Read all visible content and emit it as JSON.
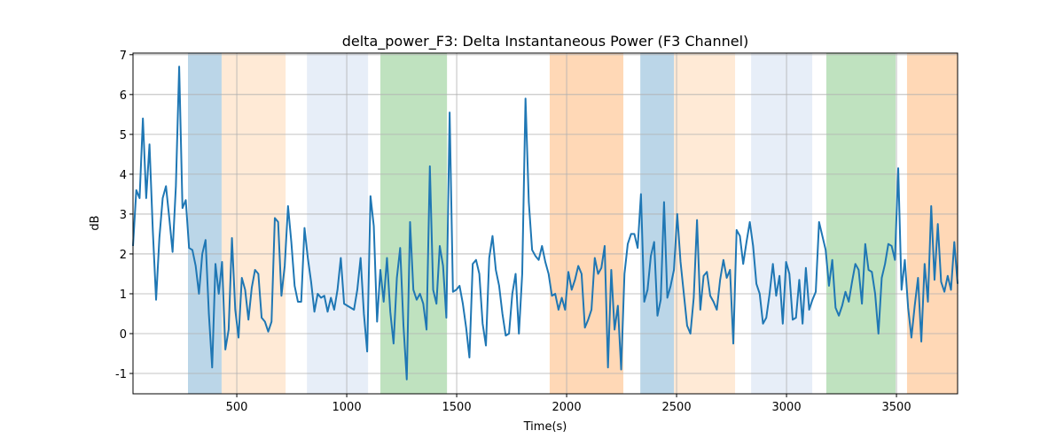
{
  "chart_data": {
    "type": "line",
    "title": "delta_power_F3: Delta Instantaneous Power (F3 Channel)",
    "xlabel": "Time(s)",
    "ylabel": "dB",
    "x": [
      28,
      43,
      58,
      73,
      88,
      103,
      118,
      133,
      148,
      163,
      178,
      193,
      208,
      223,
      238,
      253,
      268,
      283,
      298,
      313,
      328,
      343,
      358,
      373,
      388,
      403,
      418,
      433,
      448,
      463,
      478,
      493,
      508,
      523,
      538,
      553,
      568,
      583,
      598,
      613,
      628,
      643,
      658,
      673,
      688,
      703,
      718,
      733,
      748,
      763,
      778,
      793,
      808,
      823,
      838,
      853,
      868,
      883,
      898,
      913,
      928,
      943,
      958,
      973,
      988,
      1003,
      1018,
      1033,
      1048,
      1063,
      1078,
      1093,
      1108,
      1123,
      1138,
      1153,
      1168,
      1183,
      1198,
      1213,
      1228,
      1243,
      1258,
      1273,
      1288,
      1303,
      1318,
      1333,
      1348,
      1363,
      1378,
      1393,
      1408,
      1423,
      1438,
      1453,
      1468,
      1483,
      1498,
      1513,
      1528,
      1543,
      1558,
      1573,
      1588,
      1603,
      1618,
      1633,
      1648,
      1663,
      1678,
      1693,
      1708,
      1723,
      1738,
      1753,
      1768,
      1783,
      1798,
      1813,
      1828,
      1843,
      1858,
      1873,
      1888,
      1903,
      1918,
      1933,
      1948,
      1963,
      1978,
      1993,
      2008,
      2023,
      2038,
      2053,
      2068,
      2083,
      2098,
      2113,
      2128,
      2143,
      2158,
      2173,
      2188,
      2203,
      2218,
      2233,
      2248,
      2263,
      2278,
      2293,
      2308,
      2323,
      2338,
      2353,
      2368,
      2383,
      2398,
      2413,
      2428,
      2443,
      2458,
      2473,
      2488,
      2503,
      2518,
      2533,
      2548,
      2563,
      2578,
      2593,
      2608,
      2623,
      2638,
      2653,
      2668,
      2683,
      2698,
      2713,
      2728,
      2743,
      2758,
      2773,
      2788,
      2803,
      2818,
      2833,
      2848,
      2863,
      2878,
      2893,
      2908,
      2923,
      2938,
      2953,
      2968,
      2983,
      2998,
      3013,
      3028,
      3043,
      3058,
      3073,
      3088,
      3103,
      3118,
      3133,
      3148,
      3163,
      3178,
      3193,
      3208,
      3223,
      3238,
      3253,
      3268,
      3283,
      3298,
      3313,
      3328,
      3343,
      3358,
      3373,
      3388,
      3403,
      3418,
      3433,
      3448,
      3463,
      3478,
      3493,
      3508,
      3523,
      3538,
      3553,
      3568,
      3583,
      3598,
      3613,
      3628,
      3643,
      3658,
      3673,
      3688,
      3703,
      3718,
      3733,
      3748,
      3763,
      3778
    ],
    "values": [
      2.2,
      3.6,
      3.4,
      5.4,
      3.4,
      4.75,
      2.6,
      0.85,
      2.4,
      3.4,
      3.7,
      2.9,
      2.05,
      3.7,
      6.7,
      3.15,
      3.35,
      2.15,
      2.1,
      1.7,
      1.0,
      2.0,
      2.35,
      0.5,
      -0.85,
      1.75,
      1.0,
      1.8,
      -0.4,
      0.1,
      2.4,
      0.6,
      -0.1,
      1.4,
      1.1,
      0.35,
      1.15,
      1.6,
      1.5,
      0.4,
      0.3,
      0.05,
      0.3,
      2.9,
      2.8,
      0.95,
      1.7,
      3.2,
      2.3,
      1.2,
      0.8,
      0.8,
      2.65,
      1.9,
      1.3,
      0.55,
      1.0,
      0.9,
      0.95,
      0.55,
      0.9,
      0.6,
      1.1,
      1.9,
      0.75,
      0.7,
      0.65,
      0.6,
      1.1,
      1.9,
      0.5,
      -0.45,
      3.45,
      2.7,
      0.3,
      1.6,
      0.8,
      1.9,
      0.55,
      -0.25,
      1.4,
      2.15,
      0.2,
      -1.15,
      2.8,
      1.1,
      0.85,
      1.0,
      0.75,
      0.1,
      4.2,
      1.1,
      0.75,
      2.2,
      1.7,
      0.4,
      5.55,
      1.05,
      1.1,
      1.2,
      0.75,
      0.15,
      -0.6,
      1.75,
      1.85,
      1.5,
      0.25,
      -0.3,
      1.9,
      2.45,
      1.6,
      1.2,
      0.5,
      -0.05,
      0.0,
      1.0,
      1.5,
      0.0,
      1.5,
      5.9,
      3.3,
      2.1,
      1.95,
      1.85,
      2.2,
      1.8,
      1.5,
      0.95,
      1.0,
      0.6,
      0.9,
      0.6,
      1.55,
      1.1,
      1.35,
      1.7,
      1.5,
      0.15,
      0.35,
      0.6,
      1.9,
      1.5,
      1.65,
      2.2,
      -0.85,
      1.6,
      0.1,
      0.7,
      -0.9,
      1.5,
      2.25,
      2.5,
      2.5,
      2.15,
      3.5,
      0.8,
      1.1,
      1.95,
      2.3,
      0.45,
      0.85,
      3.3,
      0.9,
      1.2,
      1.6,
      3.0,
      1.8,
      1.0,
      0.2,
      0.0,
      0.9,
      2.85,
      0.6,
      1.45,
      1.55,
      0.95,
      0.8,
      0.6,
      1.35,
      1.85,
      1.4,
      1.6,
      -0.25,
      2.6,
      2.45,
      1.75,
      2.3,
      2.8,
      2.2,
      1.25,
      1.0,
      0.25,
      0.4,
      1.0,
      1.75,
      0.95,
      1.45,
      0.25,
      1.8,
      1.5,
      0.35,
      0.4,
      1.35,
      0.25,
      1.65,
      0.6,
      0.85,
      1.05,
      2.8,
      2.45,
      2.1,
      1.2,
      1.85,
      0.65,
      0.45,
      0.7,
      1.05,
      0.8,
      1.3,
      1.75,
      1.6,
      0.75,
      2.25,
      1.6,
      1.55,
      1.0,
      0.0,
      1.4,
      1.75,
      2.25,
      2.2,
      1.85,
      4.15,
      1.1,
      1.85,
      0.65,
      -0.1,
      0.7,
      1.4,
      -0.2,
      1.75,
      0.8,
      3.2,
      1.35,
      2.75,
      1.3,
      1.05,
      1.45,
      1.1,
      2.3,
      1.25
    ],
    "color": "#1f77b4",
    "spans": [
      {
        "start": 278,
        "end": 431,
        "color": "#1f77b4"
      },
      {
        "start": 431,
        "end": 722,
        "color": "#ffbb78"
      },
      {
        "start": 819,
        "end": 1097,
        "color": "#aec7e8"
      },
      {
        "start": 1153,
        "end": 1456,
        "color": "#2ca02c"
      },
      {
        "start": 1923,
        "end": 2258,
        "color": "#ff7f0e"
      },
      {
        "start": 2335,
        "end": 2488,
        "color": "#1f77b4"
      },
      {
        "start": 2488,
        "end": 2766,
        "color": "#ffbb78"
      },
      {
        "start": 2839,
        "end": 3117,
        "color": "#aec7e8"
      },
      {
        "start": 3181,
        "end": 3496,
        "color": "#2ca02c"
      },
      {
        "start": 3548,
        "end": 3778,
        "color": "#ff7f0e"
      }
    ],
    "span_alpha": 0.3,
    "xlim": [
      28,
      3778
    ],
    "ylim": [
      -1.51,
      7.04
    ],
    "xticks": [
      500,
      1000,
      1500,
      2000,
      2500,
      3000,
      3500
    ],
    "yticks": [
      -1,
      0,
      1,
      2,
      3,
      4,
      5,
      6,
      7
    ],
    "grid": true
  }
}
